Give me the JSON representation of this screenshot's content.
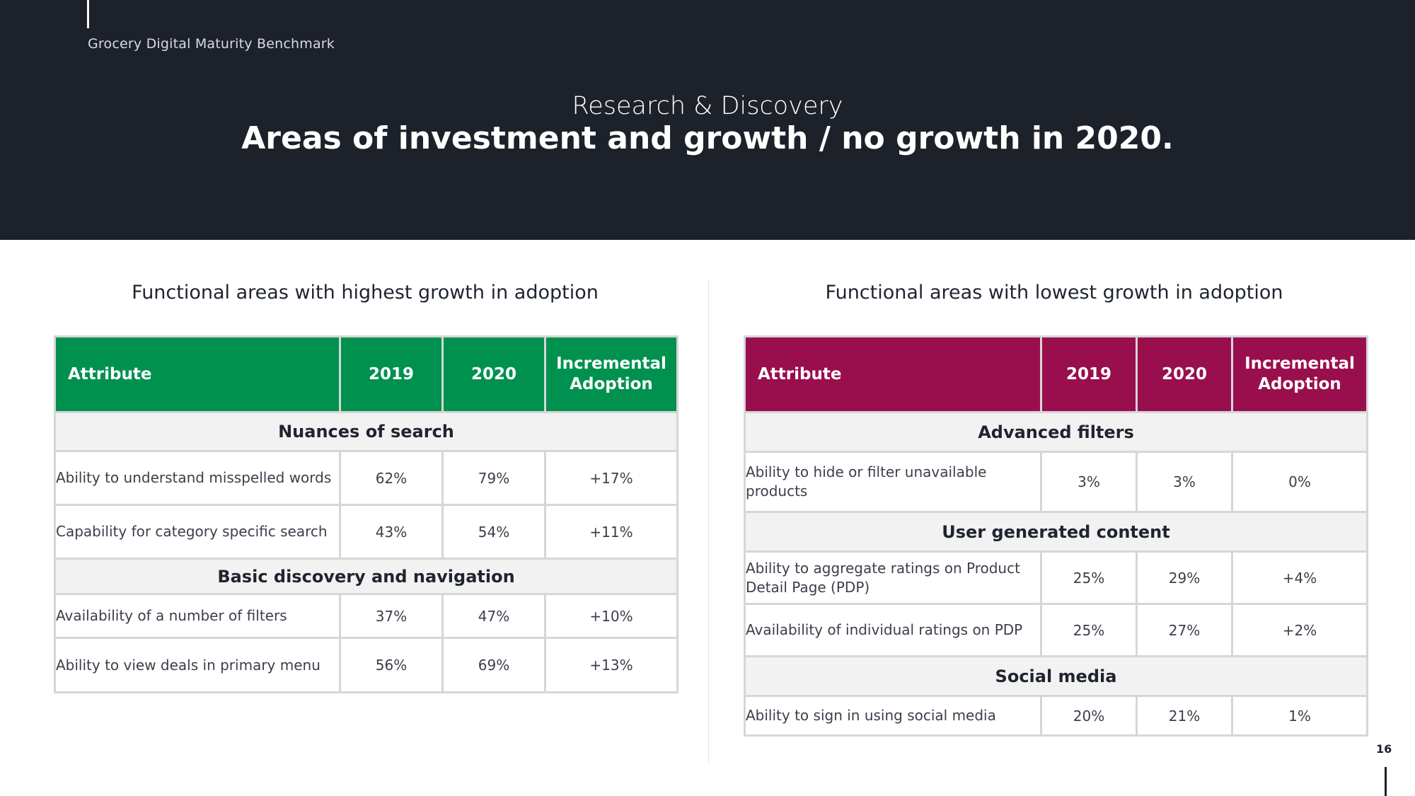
{
  "header": {
    "brand": "Grocery Digital Maturity Benchmark",
    "subtitle": "Research & Discovery",
    "title": "Areas of investment and growth / no growth in 2020."
  },
  "colors": {
    "header_bg": "#1d212a",
    "highest_table_header": "#00914f",
    "lowest_table_header": "#990f4d",
    "section_row_bg": "#f2f2f2"
  },
  "left_panel": {
    "title": "Functional areas with highest growth in adoption",
    "columns": [
      "Attribute",
      "2019",
      "2020",
      "Incremental Adoption"
    ],
    "sections": [
      {
        "name": "Nuances of search",
        "rows": [
          {
            "attribute": "Ability to understand misspelled words",
            "y2019": "62%",
            "y2020": "79%",
            "incremental": "+17%"
          },
          {
            "attribute": "Capability for category specific search",
            "y2019": "43%",
            "y2020": "54%",
            "incremental": "+11%"
          }
        ]
      },
      {
        "name": "Basic discovery and navigation",
        "rows": [
          {
            "attribute": "Availability of a number of filters",
            "y2019": "37%",
            "y2020": "47%",
            "incremental": "+10%"
          },
          {
            "attribute": "Ability to view deals in primary menu",
            "y2019": "56%",
            "y2020": "69%",
            "incremental": "+13%"
          }
        ]
      }
    ]
  },
  "right_panel": {
    "title": "Functional areas with lowest growth in adoption",
    "columns": [
      "Attribute",
      "2019",
      "2020",
      "Incremental Adoption"
    ],
    "sections": [
      {
        "name": "Advanced filters",
        "rows": [
          {
            "attribute": "Ability to hide or filter unavailable products",
            "y2019": "3%",
            "y2020": "3%",
            "incremental": "0%"
          }
        ]
      },
      {
        "name": "User generated content",
        "rows": [
          {
            "attribute": "Ability to aggregate ratings on Product Detail Page (PDP)",
            "y2019": "25%",
            "y2020": "29%",
            "incremental": "+4%"
          },
          {
            "attribute": "Availability of individual ratings on PDP",
            "y2019": "25%",
            "y2020": "27%",
            "incremental": "+2%"
          }
        ]
      },
      {
        "name": "Social media",
        "rows": [
          {
            "attribute": "Ability to sign in using social media",
            "y2019": "20%",
            "y2020": "21%",
            "incremental": "1%"
          }
        ]
      }
    ]
  },
  "footer": {
    "page_number": "16"
  }
}
